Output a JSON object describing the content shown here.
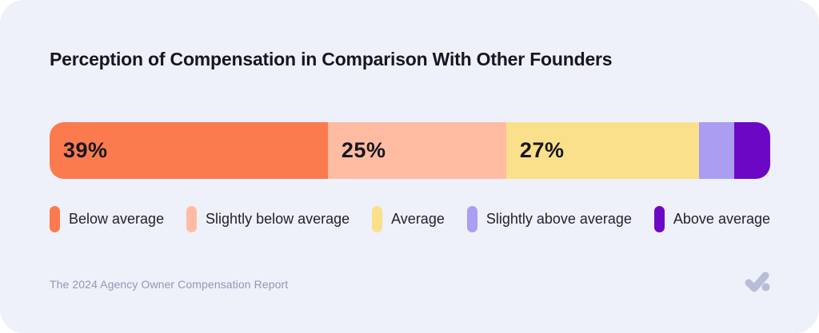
{
  "page": {
    "background": "#FFFFFF",
    "card_background": "#EEF0FA",
    "title_color": "#17171F",
    "muted_text_color": "#9397B6",
    "logo_color": "#B9BDD8"
  },
  "chart_data": {
    "type": "bar",
    "orientation": "horizontal_stacked",
    "title": "Perception of Compensation in Comparison With Other Founders",
    "categories": [
      "Below average",
      "Slightly below average",
      "Average",
      "Slightly above average",
      "Above average"
    ],
    "values": [
      39,
      25,
      27,
      5,
      5
    ],
    "value_labels": [
      "39%",
      "25%",
      "27%",
      "",
      ""
    ],
    "colors": [
      "#FB7B4F",
      "#FFBCA3",
      "#FBE08B",
      "#AA9DF2",
      "#6C08C5"
    ],
    "legend_position": "bottom",
    "grid": false,
    "source": "The 2024 Agency Owner Compensation Report"
  }
}
